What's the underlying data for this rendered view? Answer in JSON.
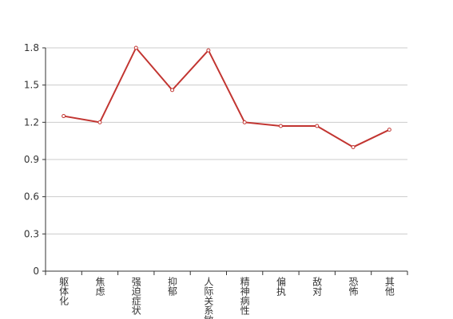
{
  "chart_data": {
    "type": "line",
    "categories": [
      "躯体化",
      "焦虑",
      "强迫症状",
      "抑郁",
      "人际关系敏感",
      "精神病性",
      "偏执",
      "敌对",
      "恐怖",
      "其他"
    ],
    "values": [
      1.25,
      1.2,
      1.8,
      1.46,
      1.78,
      1.2,
      1.17,
      1.17,
      1.0,
      1.14
    ],
    "color": "#c23531",
    "ylim": [
      0,
      1.8
    ],
    "yticks": [
      0,
      0.3,
      0.6,
      0.9,
      1.2,
      1.5,
      1.8
    ],
    "grid": true
  }
}
